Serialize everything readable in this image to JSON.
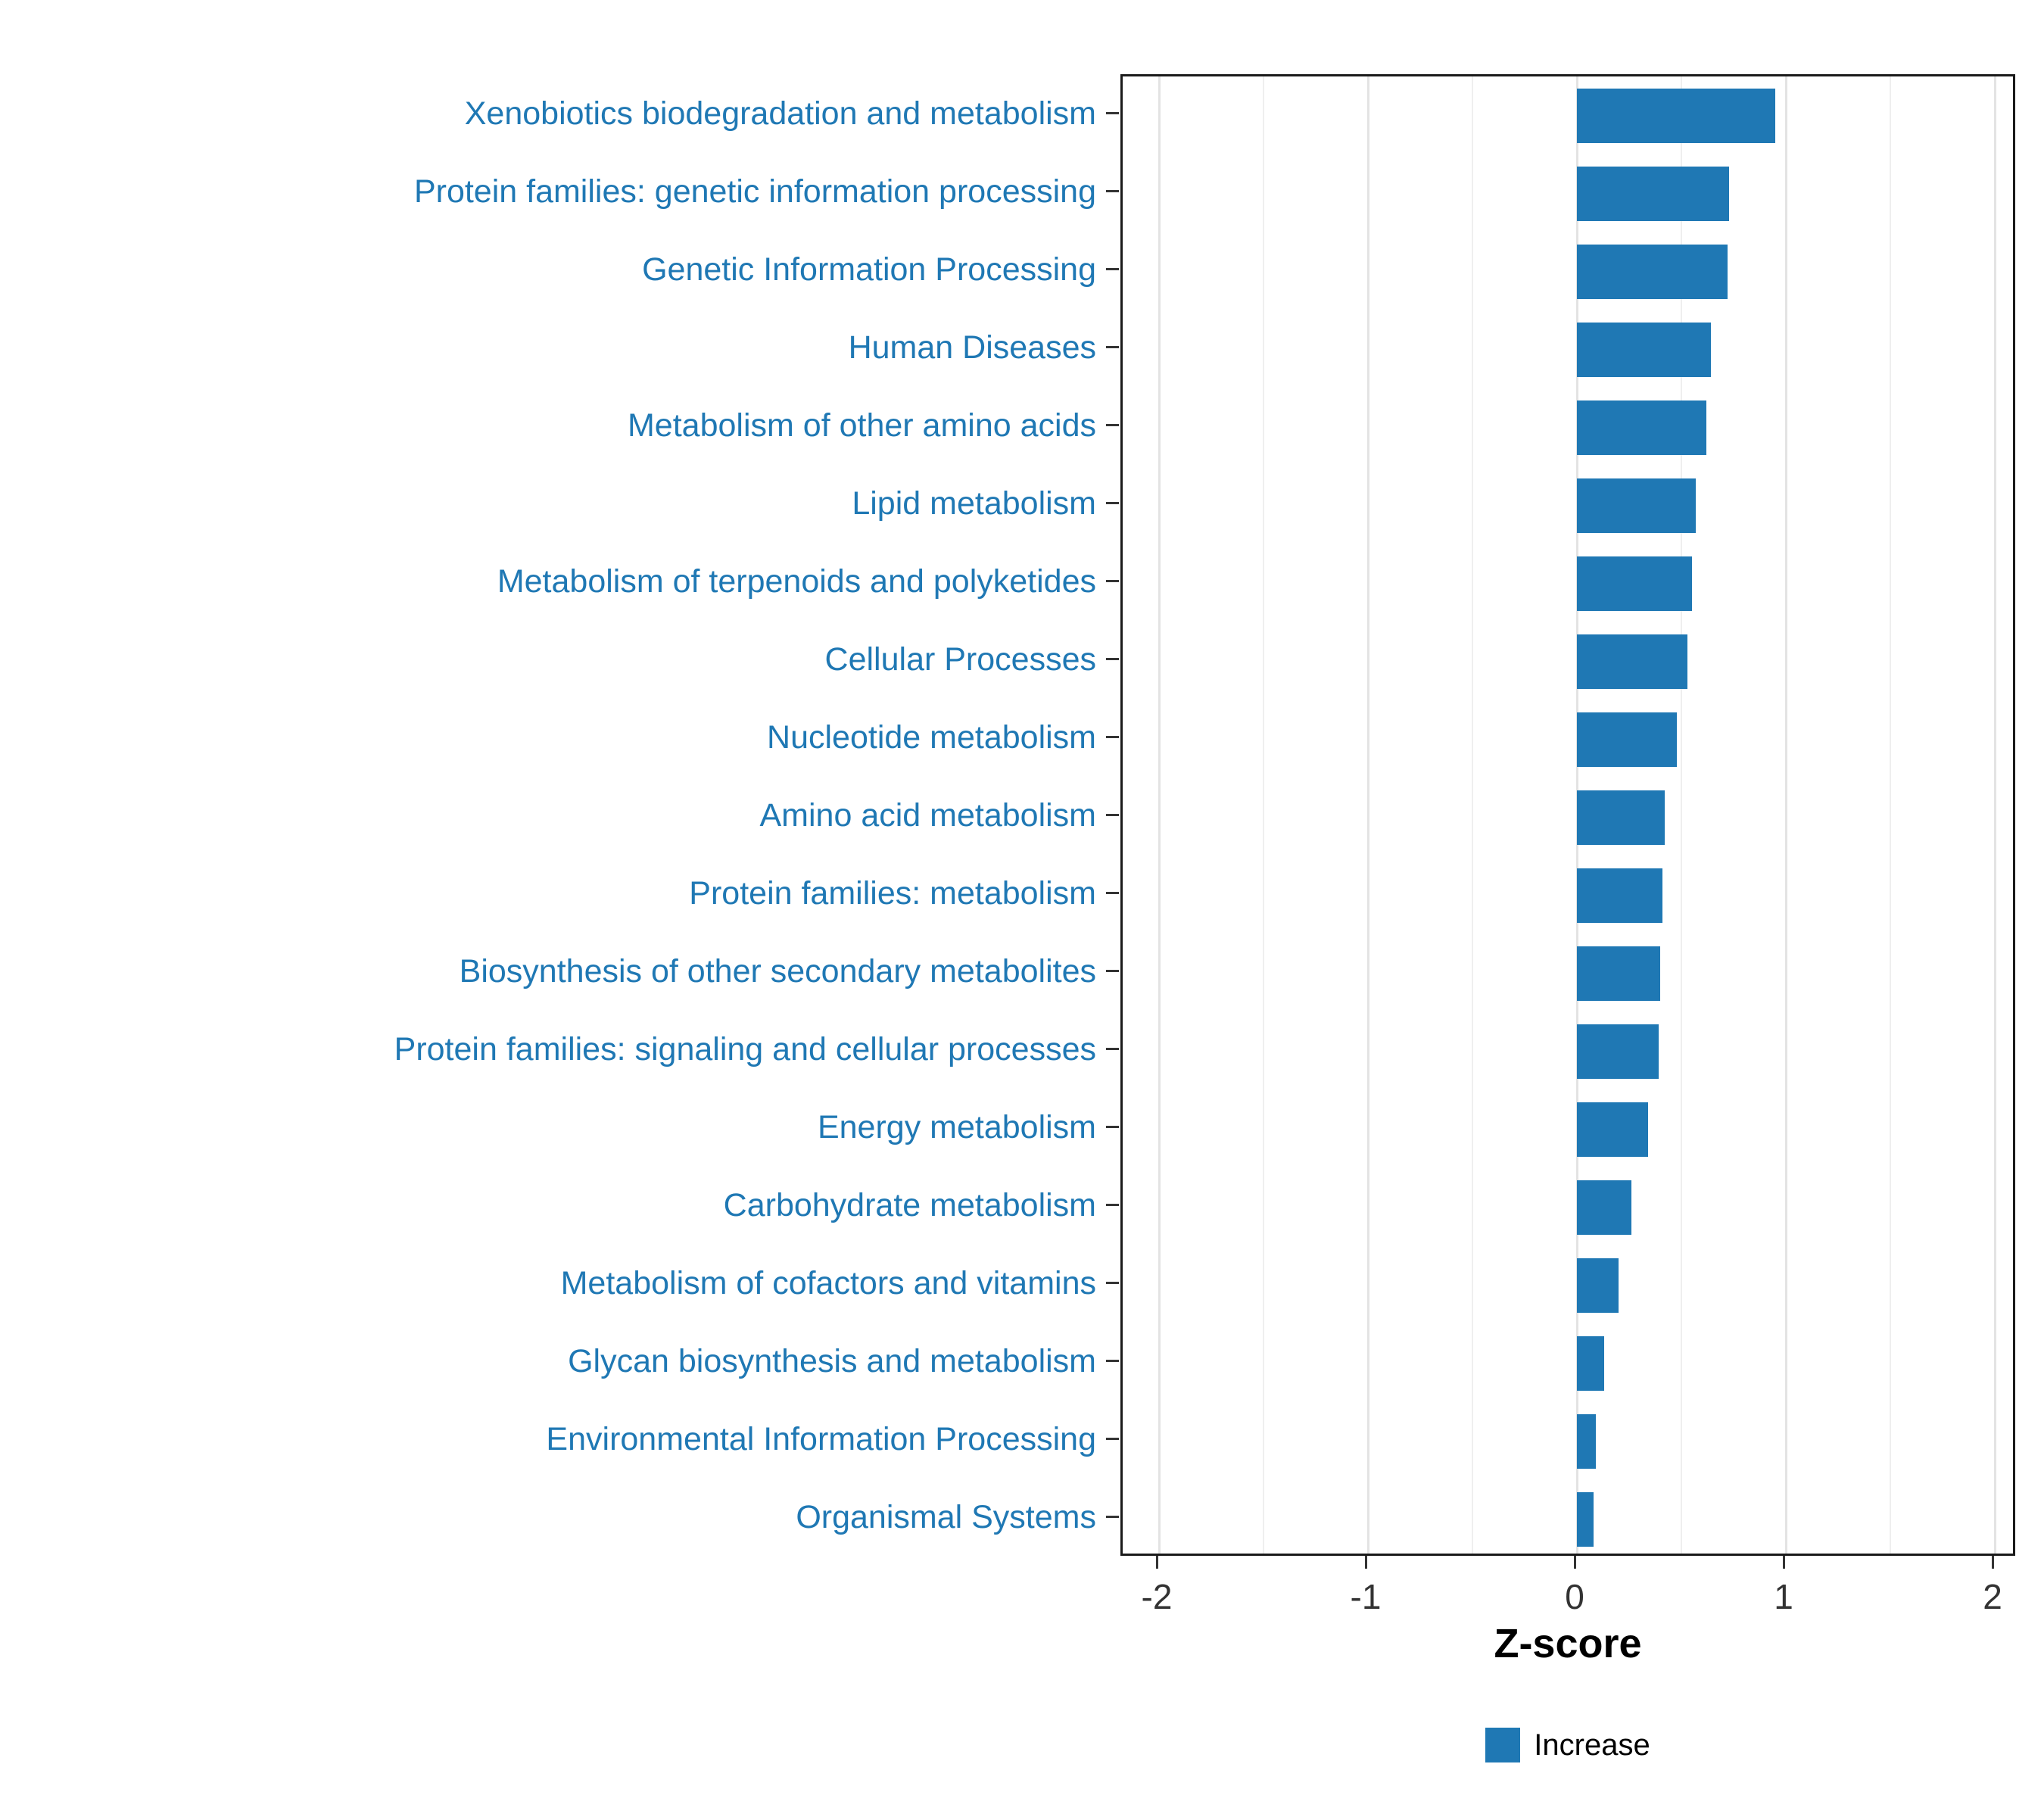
{
  "figure": {
    "legend": {
      "label": "Increase",
      "color": "#1f78b4"
    }
  },
  "chart_data": {
    "type": "bar",
    "orientation": "horizontal",
    "title": "",
    "xlabel": "Z-score",
    "ylabel": "",
    "xlim": [
      -2.15,
      2.15
    ],
    "xticks": [
      -2,
      -1,
      0,
      1,
      2
    ],
    "minor_ticks": [
      -1.5,
      -0.5,
      0.5,
      1.5
    ],
    "grid": true,
    "legend_position": "bottom",
    "bar_color": "#1f78b4",
    "category_label_color": "#1f78b4",
    "categories": [
      "Xenobiotics biodegradation and metabolism",
      "Protein families: genetic information processing",
      "Genetic Information Processing",
      "Human Diseases",
      "Metabolism of other amino acids",
      "Lipid metabolism",
      "Metabolism of terpenoids and polyketides",
      "Cellular Processes",
      "Nucleotide metabolism",
      "Amino acid metabolism",
      "Protein families: metabolism",
      "Biosynthesis of other secondary metabolites",
      "Protein families: signaling and cellular processes",
      "Energy metabolism",
      "Carbohydrate metabolism",
      "Metabolism of cofactors and vitamins",
      "Glycan biosynthesis and metabolism",
      "Environmental Information Processing",
      "Organismal Systems"
    ],
    "values": [
      0.95,
      0.73,
      0.72,
      0.64,
      0.62,
      0.57,
      0.55,
      0.53,
      0.48,
      0.42,
      0.41,
      0.4,
      0.39,
      0.34,
      0.26,
      0.2,
      0.13,
      0.09,
      0.08
    ],
    "series": [
      {
        "name": "Increase",
        "values": [
          0.95,
          0.73,
          0.72,
          0.64,
          0.62,
          0.57,
          0.55,
          0.53,
          0.48,
          0.42,
          0.41,
          0.4,
          0.39,
          0.34,
          0.26,
          0.2,
          0.13,
          0.09,
          0.08
        ]
      }
    ]
  }
}
